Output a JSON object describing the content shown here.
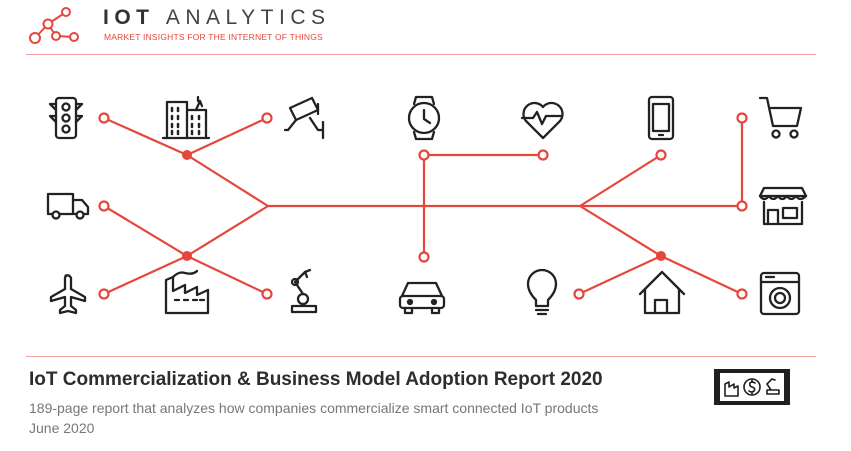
{
  "brand": {
    "name_bold": "IOT",
    "name_light": "ANALYTICS",
    "tagline": "MARKET INSIGHTS FOR THE INTERNET OF THINGS"
  },
  "icons": [
    "traffic-light-icon",
    "buildings-icon",
    "security-camera-icon",
    "smartwatch-icon",
    "heart-rate-icon",
    "smartphone-icon",
    "shopping-cart-icon",
    "delivery-truck-icon",
    "storefront-icon",
    "airplane-icon",
    "factory-icon",
    "robot-arm-icon",
    "car-icon",
    "light-bulb-icon",
    "house-icon",
    "washing-machine-icon"
  ],
  "colors": {
    "accent": "#e5473d",
    "icon_stroke": "#222222",
    "divider": "#f2a59d",
    "title": "#2d2d2d",
    "subtitle": "#777777"
  },
  "report": {
    "title": "IoT Commercialization & Business Model Adoption Report 2020",
    "subtitle": "189-page report that analyzes how companies commercialize smart connected IoT products",
    "date": "June 2020"
  }
}
